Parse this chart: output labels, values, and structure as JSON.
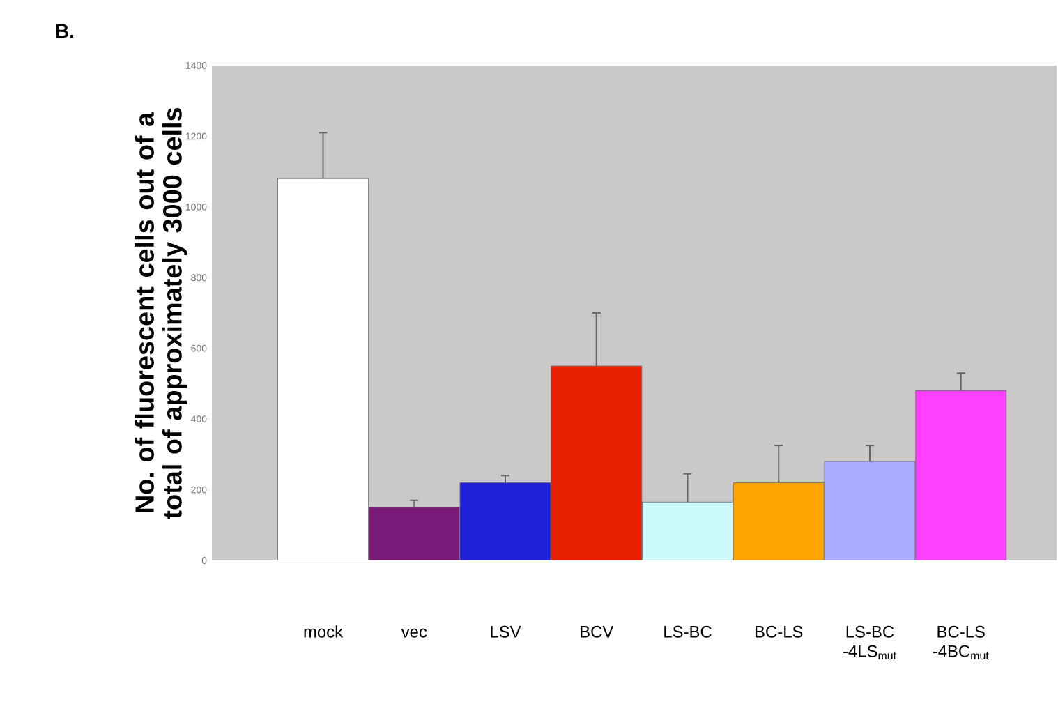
{
  "chart_data": {
    "type": "bar",
    "title": "B.",
    "ylabel": "No. of fluorescent cells out of a total of approximately 3000 cells",
    "categories": [
      "mock",
      "vec",
      "LSV",
      "BCV",
      "LS-BC",
      "BC-LS",
      "LS-BC -4LS$_{mut}$",
      "BC-LS -4BC$_{mut}$"
    ],
    "values": [
      1080,
      150,
      220,
      550,
      165,
      220,
      280,
      480
    ],
    "colors": [
      "#ffffff",
      "#7a1a78",
      "#2020d8",
      "#e82000",
      "#ccfafa",
      "#ffa500",
      "#aaaaff",
      "#ff40ff"
    ],
    "errors": [
      [
        1080,
        1210
      ],
      [
        150,
        170
      ],
      [
        220,
        240
      ],
      [
        550,
        700
      ],
      [
        165,
        245
      ],
      [
        220,
        325
      ],
      [
        280,
        325
      ],
      [
        480,
        530
      ]
    ],
    "ylim": [
      0,
      1400
    ],
    "yticks": [
      0,
      200,
      400,
      600,
      800,
      1000,
      1200,
      1400
    ],
    "grid": false
  }
}
